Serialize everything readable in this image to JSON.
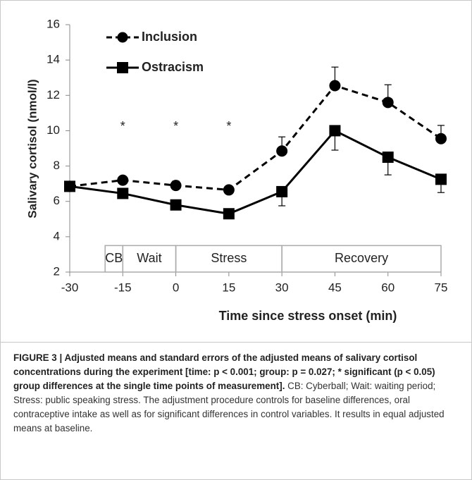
{
  "chart_data": {
    "type": "line",
    "x": [
      -30,
      -15,
      0,
      15,
      30,
      45,
      60,
      75
    ],
    "series": [
      {
        "name": "Inclusion",
        "color": "#000000",
        "dash": true,
        "marker": "circle",
        "values": [
          6.85,
          7.2,
          6.9,
          6.65,
          8.85,
          12.55,
          11.6,
          9.55
        ],
        "errors": [
          0,
          0.2,
          0.25,
          0.15,
          0.8,
          1.05,
          1.0,
          0.75
        ]
      },
      {
        "name": "Ostracism",
        "color": "#000000",
        "dash": false,
        "marker": "square",
        "values": [
          6.85,
          6.45,
          5.8,
          5.3,
          6.55,
          10.0,
          8.5,
          7.25
        ],
        "errors": [
          0,
          0.15,
          0.15,
          0.1,
          0.8,
          1.1,
          1.0,
          0.75
        ]
      }
    ],
    "xlim": [
      -30,
      75
    ],
    "ylim": [
      2,
      16
    ],
    "xticks": [
      -30,
      -15,
      0,
      15,
      30,
      45,
      60,
      75
    ],
    "yticks": [
      2,
      4,
      6,
      8,
      10,
      12,
      14,
      16
    ],
    "x_label": "Time since stress onset (min)",
    "y_label": "Salivary cortisol (nmol/l)",
    "legend": "upper left",
    "annotations": [
      {
        "text": "*",
        "x": -15,
        "y": 10.2
      },
      {
        "text": "*",
        "x": 0,
        "y": 10.2
      },
      {
        "text": "*",
        "x": 15,
        "y": 10.2
      }
    ],
    "phases": [
      {
        "label": "CB",
        "start": -20,
        "end": -15
      },
      {
        "label": "Wait",
        "start": -15,
        "end": 0
      },
      {
        "label": "Stress",
        "start": 0,
        "end": 30
      },
      {
        "label": "Recovery",
        "start": 30,
        "end": 75
      }
    ],
    "phase_top": 3.5,
    "caption_bold": "FIGURE 3 | Adjusted means and standard errors of the adjusted means of salivary cortisol concentrations during the experiment [time: p < 0.001; group: p = 0.027; * significant (p < 0.05) group differences at the single time points of measurement].",
    "caption_text": " CB: Cyberball; Wait: waiting period; Stress: public speaking stress. The adjustment procedure controls for baseline differences, oral contraceptive intake as well as for significant differences in control variables. It results in equal adjusted means at baseline."
  }
}
